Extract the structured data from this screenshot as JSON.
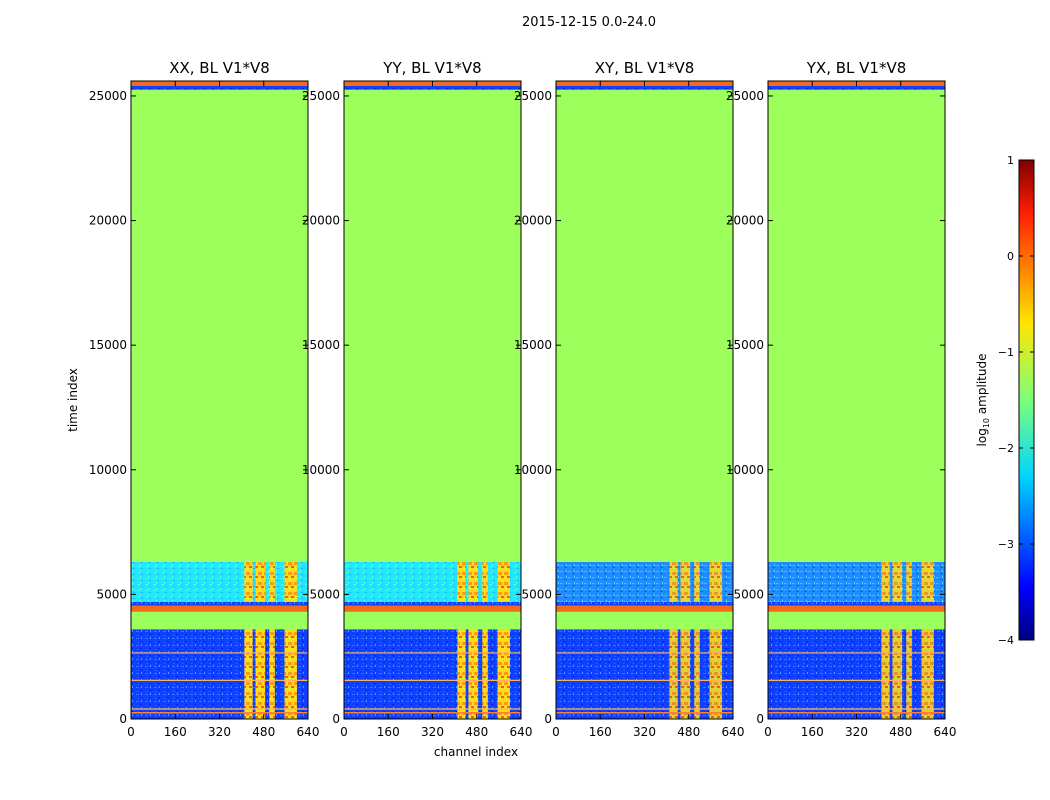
{
  "figure": {
    "suptitle": "2015-12-15 0.0-24.0",
    "xlabel": "channel index",
    "ylabel": "time index"
  },
  "colors": {
    "fill_value": "#9cff5b",
    "flag_band": "#f26a1b",
    "noise_low": "#0a2bff",
    "noise_mid": "#1f7dff",
    "noise_cyan": "#10f0ff",
    "rfi_yellow": "#fff21a",
    "rfi_orange": "#ff9a14"
  },
  "chart_data": {
    "type": "heatmap",
    "colormap": "jet",
    "xlim": [
      0,
      640
    ],
    "ylim": [
      0,
      25600
    ],
    "xticks": [
      0,
      160,
      320,
      480,
      640
    ],
    "yticks": [
      0,
      5000,
      10000,
      15000,
      20000,
      25000
    ],
    "ytick_labels": [
      "0",
      "5000",
      "10000",
      "15000",
      "20000",
      "25000"
    ],
    "rfi_columns": [
      {
        "start": 410,
        "end": 440
      },
      {
        "start": 450,
        "end": 485
      },
      {
        "start": 500,
        "end": 520
      },
      {
        "start": 555,
        "end": 600
      }
    ],
    "panels": [
      {
        "title": "XX, BL V1*V8",
        "bands": [
          {
            "t0": 0,
            "t1": 3600,
            "kind": "noise_dark"
          },
          {
            "t0": 3600,
            "t1": 4300,
            "kind": "fill"
          },
          {
            "t0": 4300,
            "t1": 4550,
            "kind": "flag"
          },
          {
            "t0": 4550,
            "t1": 4700,
            "kind": "noise_dark"
          },
          {
            "t0": 4700,
            "t1": 6300,
            "kind": "noise_cyan"
          },
          {
            "t0": 6300,
            "t1": 25250,
            "kind": "fill"
          },
          {
            "t0": 25250,
            "t1": 25400,
            "kind": "noise_dark"
          },
          {
            "t0": 25400,
            "t1": 25600,
            "kind": "flag"
          }
        ]
      },
      {
        "title": "YY, BL V1*V8",
        "bands": [
          {
            "t0": 0,
            "t1": 3600,
            "kind": "noise_dark"
          },
          {
            "t0": 3600,
            "t1": 4300,
            "kind": "fill"
          },
          {
            "t0": 4300,
            "t1": 4550,
            "kind": "flag"
          },
          {
            "t0": 4550,
            "t1": 4700,
            "kind": "noise_dark"
          },
          {
            "t0": 4700,
            "t1": 6300,
            "kind": "noise_cyan"
          },
          {
            "t0": 6300,
            "t1": 25250,
            "kind": "fill"
          },
          {
            "t0": 25250,
            "t1": 25400,
            "kind": "noise_dark"
          },
          {
            "t0": 25400,
            "t1": 25600,
            "kind": "flag"
          }
        ]
      },
      {
        "title": "XY, BL V1*V8",
        "bands": [
          {
            "t0": 0,
            "t1": 3600,
            "kind": "noise_dark"
          },
          {
            "t0": 3600,
            "t1": 4300,
            "kind": "fill"
          },
          {
            "t0": 4300,
            "t1": 4550,
            "kind": "flag"
          },
          {
            "t0": 4550,
            "t1": 4700,
            "kind": "noise_dark"
          },
          {
            "t0": 4700,
            "t1": 6300,
            "kind": "noise_mid"
          },
          {
            "t0": 6300,
            "t1": 25250,
            "kind": "fill"
          },
          {
            "t0": 25250,
            "t1": 25400,
            "kind": "noise_dark"
          },
          {
            "t0": 25400,
            "t1": 25600,
            "kind": "flag"
          }
        ]
      },
      {
        "title": "YX, BL V1*V8",
        "bands": [
          {
            "t0": 0,
            "t1": 3600,
            "kind": "noise_dark"
          },
          {
            "t0": 3600,
            "t1": 4300,
            "kind": "fill"
          },
          {
            "t0": 4300,
            "t1": 4550,
            "kind": "flag"
          },
          {
            "t0": 4550,
            "t1": 4700,
            "kind": "noise_dark"
          },
          {
            "t0": 4700,
            "t1": 6300,
            "kind": "noise_mid"
          },
          {
            "t0": 6300,
            "t1": 25250,
            "kind": "fill"
          },
          {
            "t0": 25250,
            "t1": 25400,
            "kind": "noise_dark"
          },
          {
            "t0": 25400,
            "t1": 25600,
            "kind": "flag"
          }
        ]
      }
    ],
    "colorbar": {
      "label": "log10 amplitude",
      "label_base": "log",
      "label_sub": "10",
      "label_tail": " amplitude",
      "vmin": -4,
      "vmax": 1,
      "ticks": [
        1,
        0,
        -1,
        -2,
        -3,
        -4
      ],
      "tick_labels": [
        "1",
        "0",
        "−1",
        "−2",
        "−3",
        "−4"
      ]
    }
  }
}
